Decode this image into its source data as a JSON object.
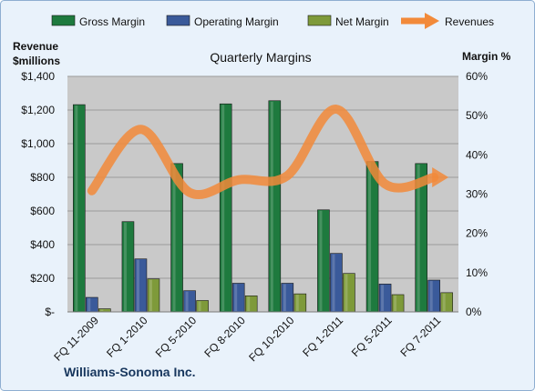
{
  "chart_data": {
    "type": "bar",
    "title": "Quarterly Margins",
    "company": "Williams-Sonoma Inc.",
    "y_left_label_lines": [
      "Revenue",
      "$millions"
    ],
    "y_right_label": "Margin %",
    "categories": [
      "FQ 11-2009",
      "FQ 1-2010",
      "FQ 5-2010",
      "FQ 8-2010",
      "FQ 10-2010",
      "FQ 1-2011",
      "FQ 5-2011",
      "FQ 7-2011"
    ],
    "y_left_ticks": [
      "$-",
      "$200",
      "$400",
      "$600",
      "$800",
      "$1,000",
      "$1,200",
      "$1,400"
    ],
    "y_right_ticks": [
      "0%",
      "10%",
      "20%",
      "30%",
      "40%",
      "50%",
      "60%"
    ],
    "ylim_left": [
      0,
      1400
    ],
    "ylim_right": [
      0,
      60
    ],
    "grid": true,
    "legend_position": "top",
    "series": [
      {
        "name": "Gross Margin",
        "kind": "bar",
        "axis": "right",
        "color": "#1e7a3e",
        "values": [
          52.8,
          23.0,
          37.8,
          53.0,
          53.8,
          26.0,
          38.3,
          37.8
        ]
      },
      {
        "name": "Operating Margin",
        "kind": "bar",
        "axis": "right",
        "color": "#3a5a9a",
        "values": [
          3.7,
          13.5,
          5.4,
          7.3,
          7.3,
          14.9,
          7.1,
          8.1
        ]
      },
      {
        "name": "Net Margin",
        "kind": "bar",
        "axis": "right",
        "color": "#7e9a3a",
        "values": [
          0.8,
          8.4,
          2.9,
          4.1,
          4.6,
          9.8,
          4.4,
          4.9
        ]
      },
      {
        "name": "Revenues",
        "kind": "line",
        "axis": "left",
        "color": "#f28a3a",
        "values": [
          720,
          1085,
          710,
          785,
          810,
          1205,
          760,
          800
        ]
      }
    ]
  }
}
